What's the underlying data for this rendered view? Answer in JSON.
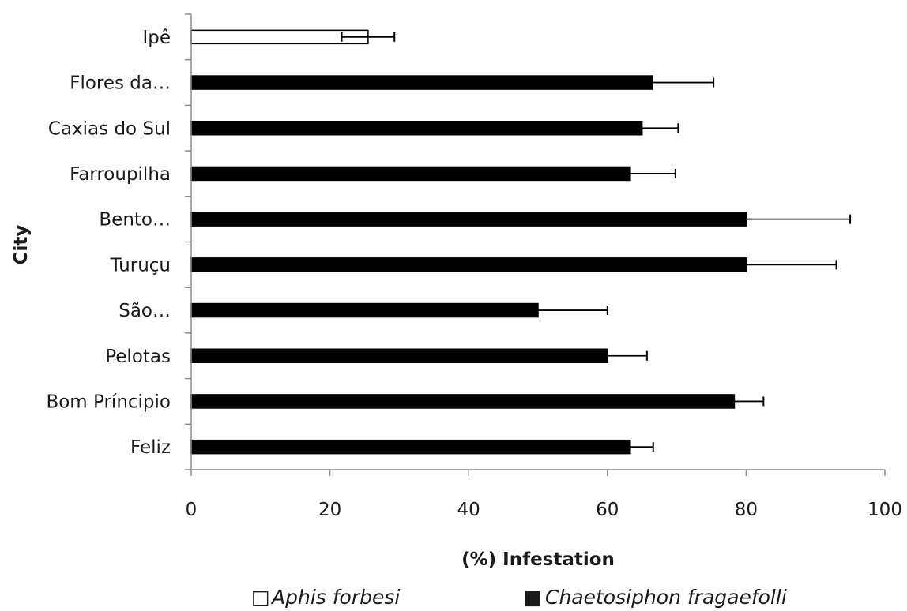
{
  "chart_data": {
    "type": "bar",
    "orientation": "horizontal",
    "title": "",
    "xlabel": "(%) Infestation",
    "ylabel": "City",
    "xlim": [
      0,
      100
    ],
    "xticks": [
      0,
      20,
      40,
      60,
      80,
      100
    ],
    "grid": false,
    "legend_position": "bottom",
    "categories": [
      "Ipê",
      "Flores da…",
      "Caxias do Sul",
      "Farroupilha",
      "Bento…",
      "Turuçu",
      "São…",
      "Pelotas",
      "Bom Príncipio",
      "Feliz"
    ],
    "series": [
      {
        "name": "Aphis forbesi",
        "legend_symbol": "□",
        "fill": "#ffffff",
        "stroke": "#000000",
        "values": [
          25.5,
          null,
          null,
          null,
          null,
          null,
          null,
          null,
          null,
          null
        ],
        "errors": [
          3.8,
          null,
          null,
          null,
          null,
          null,
          null,
          null,
          null,
          null
        ]
      },
      {
        "name": "Chaetosiphon fragaefolli",
        "legend_symbol": "■",
        "fill": "#000000",
        "stroke": "#000000",
        "values": [
          null,
          66.5,
          65,
          63.3,
          80,
          80,
          50,
          60,
          78.3,
          63.3
        ],
        "errors": [
          null,
          8.8,
          5.2,
          6.5,
          15,
          13,
          10,
          5.7,
          4.2,
          3.3
        ]
      }
    ]
  }
}
